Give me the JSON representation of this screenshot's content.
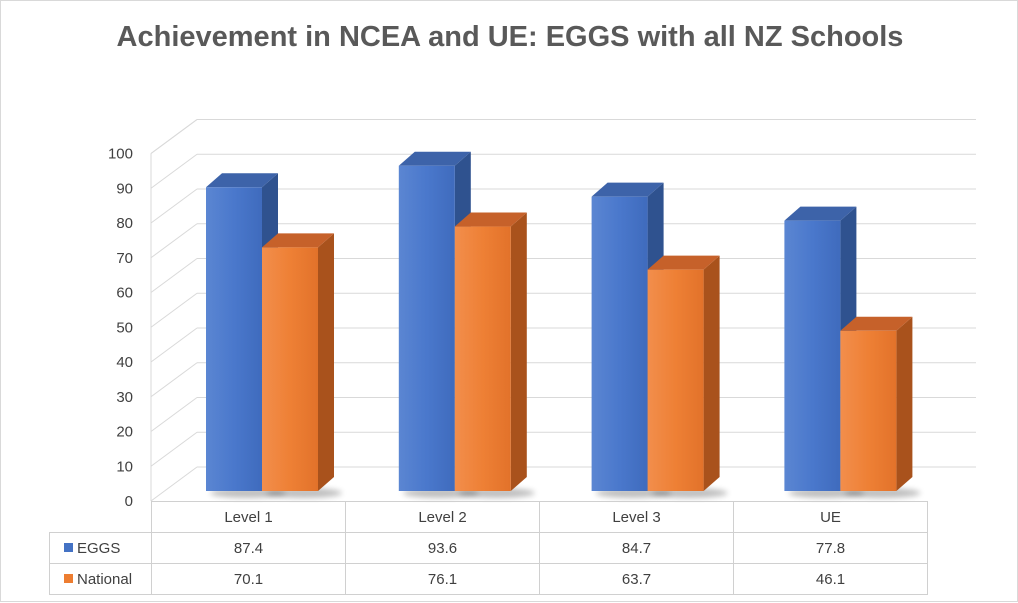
{
  "chart_data": {
    "type": "bar",
    "title": "Achievement in NCEA and UE: EGGS with all NZ Schools",
    "categories": [
      "Level 1",
      "Level 2",
      "Level 3",
      "UE"
    ],
    "series": [
      {
        "name": "EGGS",
        "values": [
          87.4,
          93.6,
          84.7,
          77.8
        ],
        "color": "#4472c4"
      },
      {
        "name": "National",
        "values": [
          70.1,
          76.1,
          63.7,
          46.1
        ],
        "color": "#ed7d31"
      }
    ],
    "ylim": [
      0,
      100
    ],
    "yticks": [
      0,
      10,
      20,
      30,
      40,
      50,
      60,
      70,
      80,
      90,
      100
    ],
    "grid": true,
    "legend": "data-table",
    "style": "3d-clustered-column"
  }
}
